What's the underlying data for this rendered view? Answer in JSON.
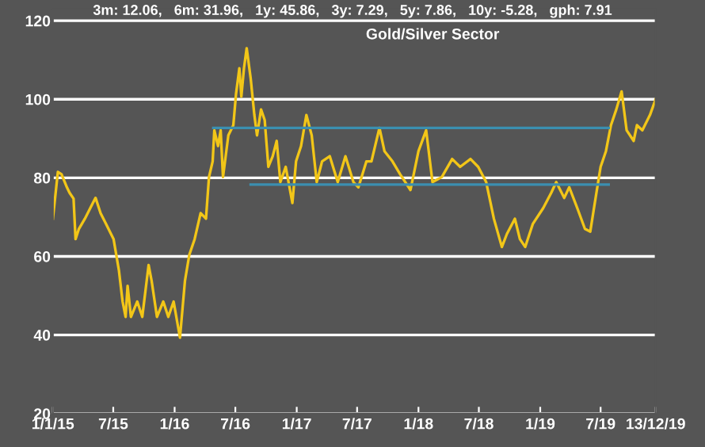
{
  "chart_data": {
    "type": "line",
    "title": "Gold/Silver Sector",
    "annotations": [
      "3m: 12.06,   6m: 31.96,   1y: 45.86,   3y: 7.29,   5y: 7.86,   10y: -5.28,   gph: 7.91"
    ],
    "series": [
      {
        "color": "#f2c618",
        "x": [
          "2015-01-01",
          "2015-01-16",
          "2015-01-27",
          "2015-02-12",
          "2015-02-20",
          "2015-03-04",
          "2015-03-10",
          "2015-03-20",
          "2015-04-07",
          "2015-05-01",
          "2015-05-09",
          "2015-05-24",
          "2015-06-09",
          "2015-07-02",
          "2015-07-18",
          "2015-07-29",
          "2015-08-07",
          "2015-08-13",
          "2015-08-23",
          "2015-09-11",
          "2015-09-26",
          "2015-10-15",
          "2015-10-24",
          "2015-11-09",
          "2015-11-28",
          "2015-12-13",
          "2015-12-29",
          "2016-01-17",
          "2016-02-01",
          "2016-02-14",
          "2016-03-01",
          "2016-03-19",
          "2016-04-04",
          "2016-04-13",
          "2016-04-24",
          "2016-04-29",
          "2016-05-10",
          "2016-05-18",
          "2016-05-25",
          "2016-06-10",
          "2016-06-25",
          "2016-07-03",
          "2016-07-13",
          "2016-07-19",
          "2016-07-27",
          "2016-08-04",
          "2016-08-16",
          "2016-08-27",
          "2016-09-04",
          "2016-09-16",
          "2016-09-27",
          "2016-10-08",
          "2016-10-21",
          "2016-11-02",
          "2016-11-13",
          "2016-11-29",
          "2016-12-19",
          "2016-12-30",
          "2017-01-14",
          "2017-01-30",
          "2017-02-15",
          "2017-03-02",
          "2017-03-18",
          "2017-04-10",
          "2017-05-04",
          "2017-05-27",
          "2017-06-20",
          "2017-07-05",
          "2017-07-29",
          "2017-08-13",
          "2017-09-06",
          "2017-09-21",
          "2017-10-15",
          "2017-11-07",
          "2017-12-08",
          "2018-01-01",
          "2018-01-24",
          "2018-02-12",
          "2018-03-12",
          "2018-04-12",
          "2018-05-06",
          "2018-06-06",
          "2018-06-29",
          "2018-07-23",
          "2018-08-15",
          "2018-09-08",
          "2018-09-23",
          "2018-10-17",
          "2018-11-01",
          "2018-11-17",
          "2018-12-10",
          "2019-01-10",
          "2019-02-03",
          "2019-02-18",
          "2019-03-14",
          "2019-03-29",
          "2019-04-22",
          "2019-05-15",
          "2019-05-31",
          "2019-06-16",
          "2019-07-01",
          "2019-07-17",
          "2019-08-01",
          "2019-08-17",
          "2019-09-02",
          "2019-09-17",
          "2019-10-08",
          "2019-10-18",
          "2019-11-03",
          "2019-11-26",
          "2019-12-13"
        ],
        "values": [
          69.6,
          81.5,
          80.9,
          77.6,
          76.2,
          74.7,
          64.4,
          67.0,
          69.6,
          73.6,
          74.9,
          71.0,
          68.3,
          64.4,
          56.4,
          48.5,
          44.6,
          52.5,
          44.6,
          48.5,
          44.6,
          57.8,
          53.8,
          44.6,
          48.5,
          44.6,
          48.5,
          39.3,
          53.8,
          60.4,
          64.4,
          71.0,
          69.6,
          80.2,
          84.2,
          92.1,
          88.1,
          92.1,
          80.2,
          90.8,
          93.4,
          101.3,
          107.9,
          100.7,
          108.0,
          113,
          105.3,
          96.0,
          90.8,
          97.4,
          94.7,
          82.8,
          85.5,
          89.4,
          78.9,
          82.8,
          73.6,
          84.2,
          88.1,
          96.0,
          90.8,
          78.9,
          84.2,
          85.5,
          78.9,
          85.5,
          78.9,
          77.6,
          84.2,
          84.2,
          92.7,
          86.8,
          84.2,
          80.9,
          76.9,
          86.8,
          92.1,
          78.9,
          80.2,
          84.8,
          82.8,
          84.8,
          82.8,
          78.9,
          69.6,
          62.4,
          65.7,
          69.6,
          64.4,
          62.4,
          68.3,
          72.3,
          76.2,
          78.9,
          74.9,
          77.6,
          72.3,
          67.0,
          66.3,
          74.9,
          82.8,
          86.8,
          93.4,
          97.4,
          102.0,
          92.1,
          89.4,
          93.4,
          92.1,
          96.0,
          100.0
        ]
      },
      {
        "color": "#3b8fb0",
        "x": [
          "2016-04-26",
          "2019-07-25"
        ],
        "values": [
          92.7,
          92.7
        ]
      },
      {
        "color": "#3b8fb0",
        "x": [
          "2016-08-16",
          "2019-07-25"
        ],
        "values": [
          78.3,
          78.3
        ]
      }
    ],
    "xlim": [
      "2015-01-01",
      "2019-12-13"
    ],
    "xticks": [
      {
        "value": "2015-01-01",
        "label": "1/1/15"
      },
      {
        "value": "2015-07-01",
        "label": "7/15"
      },
      {
        "value": "2016-01-01",
        "label": "1/16"
      },
      {
        "value": "2016-07-01",
        "label": "7/16"
      },
      {
        "value": "2017-01-01",
        "label": "1/17"
      },
      {
        "value": "2017-07-01",
        "label": "7/17"
      },
      {
        "value": "2018-01-01",
        "label": "1/18"
      },
      {
        "value": "2018-07-01",
        "label": "7/18"
      },
      {
        "value": "2019-01-01",
        "label": "1/19"
      },
      {
        "value": "2019-07-01",
        "label": "7/19"
      },
      {
        "value": "2019-12-13",
        "label": "13/12/19"
      }
    ],
    "ylim": [
      20,
      123
    ],
    "yticks": [
      20,
      40,
      60,
      80,
      100,
      120
    ],
    "grid": "y",
    "legend": false
  }
}
